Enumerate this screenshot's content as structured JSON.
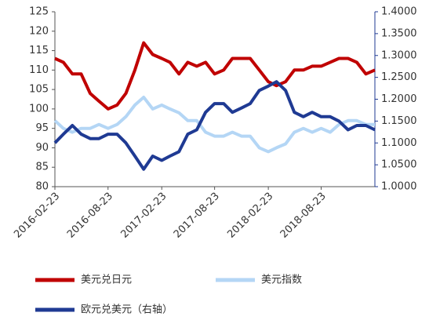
{
  "chart_data": {
    "type": "line",
    "x": [
      "2016-02-23",
      "2016-03-23",
      "2016-04-23",
      "2016-05-23",
      "2016-06-23",
      "2016-07-23",
      "2016-08-23",
      "2016-09-23",
      "2016-10-23",
      "2016-11-23",
      "2016-12-23",
      "2017-01-23",
      "2017-02-23",
      "2017-03-23",
      "2017-04-23",
      "2017-05-23",
      "2017-06-23",
      "2017-07-23",
      "2017-08-23",
      "2017-09-23",
      "2017-10-23",
      "2017-11-23",
      "2017-12-23",
      "2018-01-23",
      "2018-02-23",
      "2018-03-23",
      "2018-04-23",
      "2018-05-23",
      "2018-06-23",
      "2018-07-23",
      "2018-08-23",
      "2018-09-23",
      "2018-10-23",
      "2018-11-23",
      "2018-12-23",
      "2019-01-23",
      "2019-02-23"
    ],
    "xlim": [
      "2016-02-23",
      "2019-02-23"
    ],
    "xticks": [
      "2016-02-23",
      "2016-08-23",
      "2017-02-23",
      "2017-08-23",
      "2018-02-23",
      "2018-08-23"
    ],
    "ylim": [
      80,
      125
    ],
    "yticks": [
      80,
      85,
      90,
      95,
      100,
      105,
      110,
      115,
      120,
      125
    ],
    "y2lim": [
      1.0,
      1.4
    ],
    "y2ticks": [
      {
        "value": 1.0,
        "label": "1.0000"
      },
      {
        "value": 1.05,
        "label": "1.0500"
      },
      {
        "value": 1.1,
        "label": "1.1000"
      },
      {
        "value": 1.15,
        "label": "1.1500"
      },
      {
        "value": 1.2,
        "label": "1.2000"
      },
      {
        "value": 1.25,
        "label": "1.2500"
      },
      {
        "value": 1.3,
        "label": "1.3000"
      },
      {
        "value": 1.35,
        "label": "1.3500"
      },
      {
        "value": 1.4,
        "label": "1.4000"
      }
    ],
    "series": [
      {
        "name": "美元兑日元",
        "color": "#c00000",
        "values": [
          113,
          112,
          109,
          109,
          104,
          102,
          100,
          101,
          104,
          110,
          117,
          114,
          113,
          112,
          109,
          112,
          111,
          112,
          109,
          110,
          113,
          113,
          113,
          110,
          107,
          106,
          107,
          110,
          110,
          111,
          111,
          112,
          113,
          113,
          112,
          109,
          110
        ]
      },
      {
        "name": "美元指数",
        "color": "#b4d6f5",
        "values": [
          97,
          95,
          94,
          95,
          95,
          96,
          95,
          96,
          98,
          101,
          103,
          100,
          101,
          100,
          99,
          97,
          97,
          94,
          93,
          93,
          94,
          93,
          93,
          90,
          89,
          90,
          91,
          94,
          95,
          94,
          95,
          94,
          96,
          97,
          97,
          96,
          96
        ]
      },
      {
        "name": "欧元兑美元（右轴）",
        "color": "#1f3a93",
        "axis": "y2",
        "values": [
          1.1,
          1.12,
          1.14,
          1.12,
          1.11,
          1.11,
          1.12,
          1.12,
          1.1,
          1.07,
          1.04,
          1.07,
          1.06,
          1.07,
          1.08,
          1.12,
          1.13,
          1.17,
          1.19,
          1.19,
          1.17,
          1.18,
          1.19,
          1.22,
          1.23,
          1.24,
          1.22,
          1.17,
          1.16,
          1.17,
          1.16,
          1.16,
          1.15,
          1.13,
          1.14,
          1.14,
          1.13
        ]
      }
    ]
  }
}
